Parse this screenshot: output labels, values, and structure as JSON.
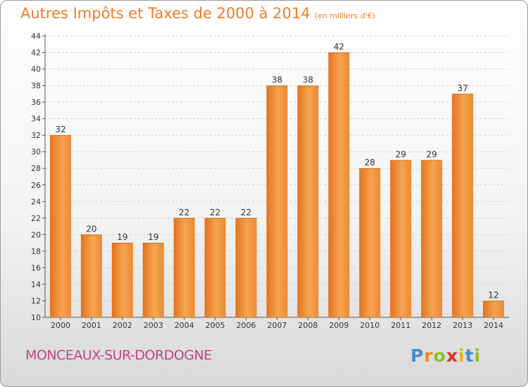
{
  "header": {
    "title": "Autres Impôts et Taxes de 2000 à 2014",
    "unit": "(en milliers d'€)"
  },
  "footer": {
    "location": "MONCEAUX-SUR-DORDOGNE",
    "logo_letters": [
      "P",
      "r",
      "o",
      "x",
      "i",
      "t",
      "i"
    ],
    "logo_colors": [
      "#3d8fd6",
      "#f28a1e",
      "#8cbf2c",
      "#d9322e",
      "#f2b01e",
      "#3d8fd6",
      "#8cbf2c"
    ]
  },
  "chart_data": {
    "type": "bar",
    "categories": [
      "2000",
      "2001",
      "2002",
      "2003",
      "2004",
      "2005",
      "2006",
      "2007",
      "2008",
      "2009",
      "2010",
      "2011",
      "2012",
      "2013",
      "2014"
    ],
    "values": [
      32,
      20,
      19,
      19,
      22,
      22,
      22,
      38,
      38,
      42,
      28,
      29,
      29,
      37,
      12
    ],
    "data_labels": [
      "32",
      "20",
      "19",
      "19",
      "22",
      "22",
      "22",
      "38",
      "38",
      "42",
      "28",
      "29",
      "29",
      "37",
      "12"
    ],
    "yticks": [
      "10",
      "12",
      "14",
      "16",
      "18",
      "20",
      "22",
      "24",
      "26",
      "28",
      "30",
      "32",
      "34",
      "36",
      "38",
      "40",
      "42",
      "44"
    ],
    "ylim": [
      10,
      44
    ],
    "grid": true,
    "bar_color_light": "#f6a450",
    "bar_color_dark": "#e2731f"
  }
}
